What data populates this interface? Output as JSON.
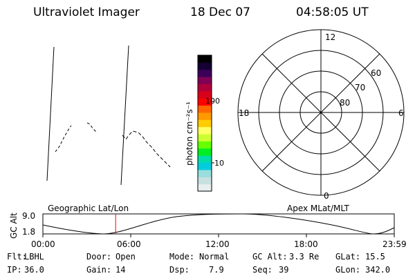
{
  "header": {
    "title": "Ultraviolet Imager",
    "date": "18 Dec 07",
    "time": "04:58:05 UT"
  },
  "colorbar": {
    "label": "photon cm⁻²s⁻¹",
    "ticks": [
      "100",
      "10"
    ],
    "colors": [
      "#000000",
      "#140033",
      "#3c005a",
      "#800055",
      "#b0003a",
      "#d8001a",
      "#ff0000",
      "#ff6600",
      "#ff9900",
      "#ffcc00",
      "#ffff66",
      "#ccff33",
      "#66ff00",
      "#00ee22",
      "#00ddaa",
      "#00ccdd",
      "#99dddd",
      "#c8e0e0",
      "#e8eeee"
    ]
  },
  "polar_plot": {
    "mlt_labels": {
      "top": "12",
      "bottom": "0",
      "left": "18",
      "right": "6"
    },
    "lat_labels": [
      "60",
      "70",
      "80"
    ]
  },
  "orbit_plot": {
    "left_title": "Geographic Lat/Lon",
    "right_title": "Apex MLat/MLT",
    "ylabel": "GC Alt",
    "ytick_top": "9.0",
    "ytick_bottom": "1.8",
    "xticks": [
      "00:00",
      "06:00",
      "12:00",
      "18:00",
      "23:59"
    ],
    "marker_time_hours": 4.97,
    "marker_color": "#ff0000"
  },
  "info": {
    "row1": [
      {
        "label": "Flt:",
        "value": "LBHL"
      },
      {
        "label": "Door:",
        "value": "Open"
      },
      {
        "label": "Mode:",
        "value": "Normal"
      },
      {
        "label": "GC Alt:",
        "value": "3.3 Re"
      },
      {
        "label": "GLat:",
        "value": "15.5"
      }
    ],
    "row2": [
      {
        "label": "IP:",
        "value": "36.0"
      },
      {
        "label": "Gain:",
        "value": "14"
      },
      {
        "label": "Dsp:",
        "value": "7.9"
      },
      {
        "label": "Seq:",
        "value": "39"
      },
      {
        "label": "GLon:",
        "value": "342.0"
      }
    ]
  }
}
